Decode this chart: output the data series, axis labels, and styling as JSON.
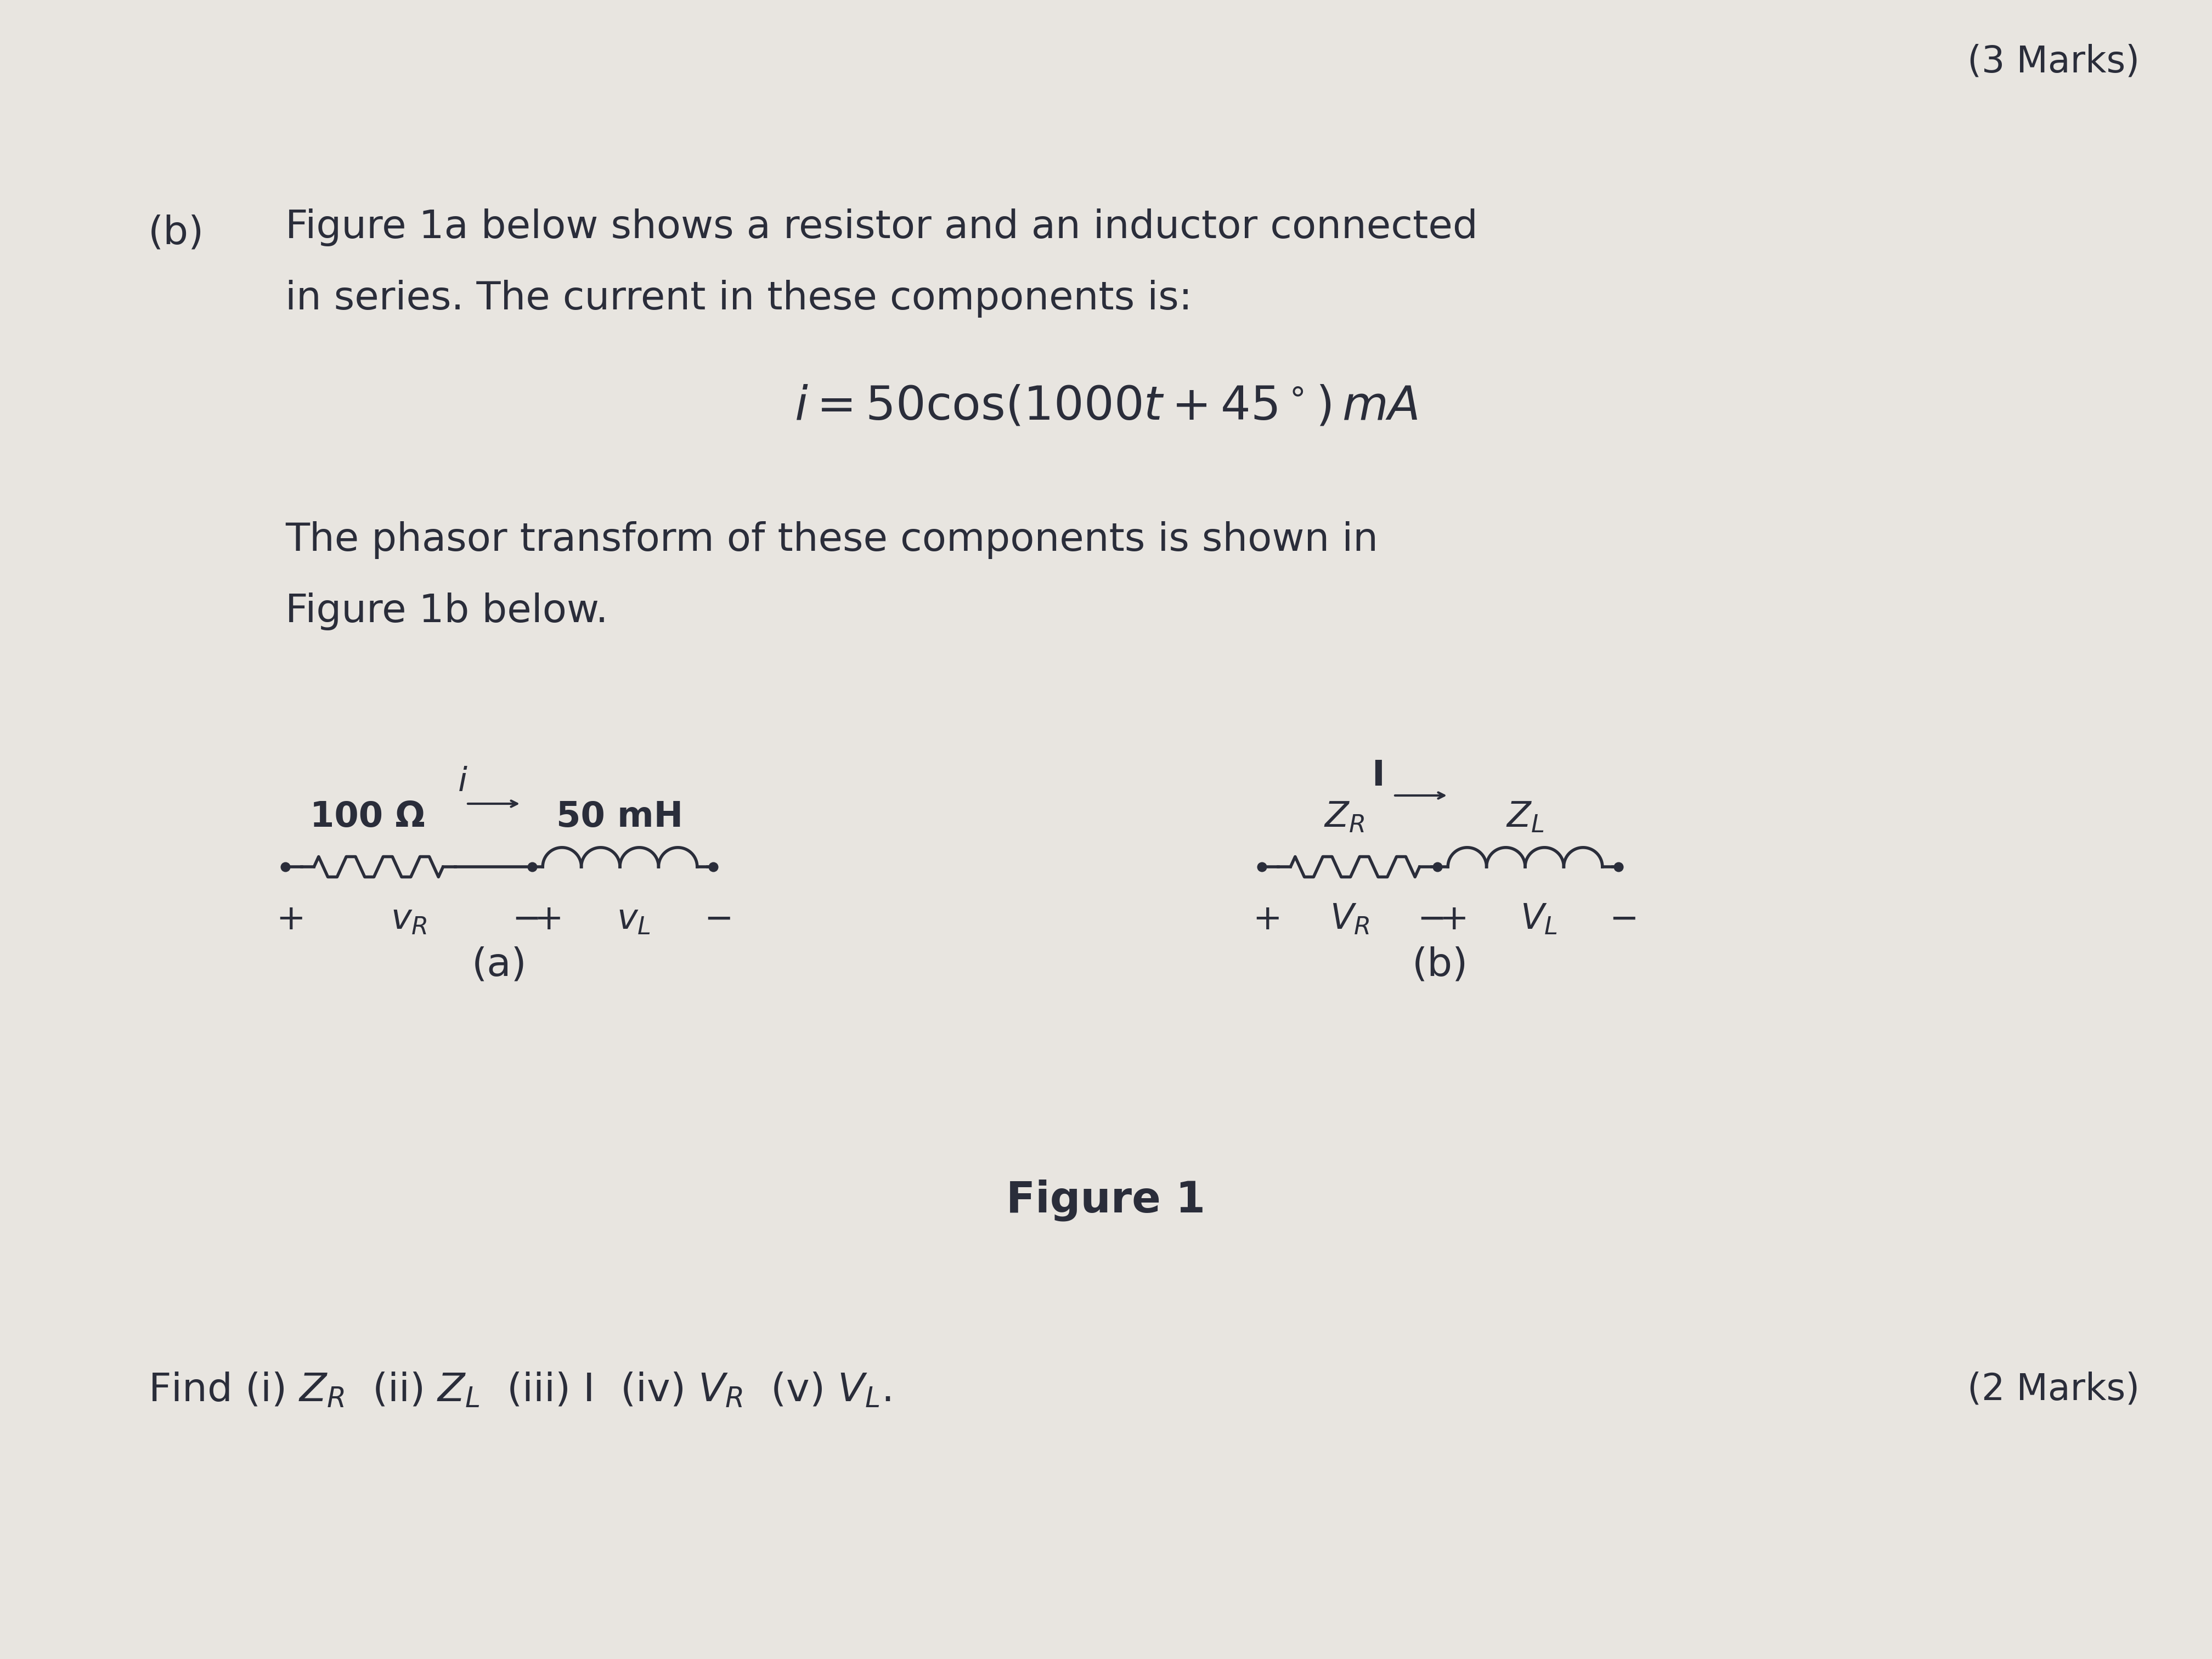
{
  "bg_color": "#e8e5e0",
  "text_color": "#2a2d3a",
  "marks_text": "(3 Marks)",
  "part_label": "(b)",
  "intro_line1": "Figure 1a below shows a resistor and an inductor connected",
  "intro_line2": "in series. The current in these components is:",
  "current_eq": "$i = 50\\cos(1000t + 45^\\circ)\\,mA$",
  "phasor_line1": "The phasor transform of these components is shown in",
  "phasor_line2": "Figure 1b below.",
  "figure_caption": "Figure 1",
  "label_a": "(a)",
  "label_b": "(b)",
  "find_text_1": "Find (i) ",
  "find_text_2": "(ii) ",
  "find_text_3": "(iii) I  (iv) ",
  "find_text_4": "(v) ",
  "marks2_text": "(2 Marks)",
  "resistor_label_a": "100 Ω",
  "inductor_label_a": "50 mH",
  "current_label_a": "i",
  "ZR_label_b": "Z",
  "ZL_label_b": "Z",
  "I_label_b": "I",
  "VR_label_b": "V",
  "VL_label_b": "V"
}
